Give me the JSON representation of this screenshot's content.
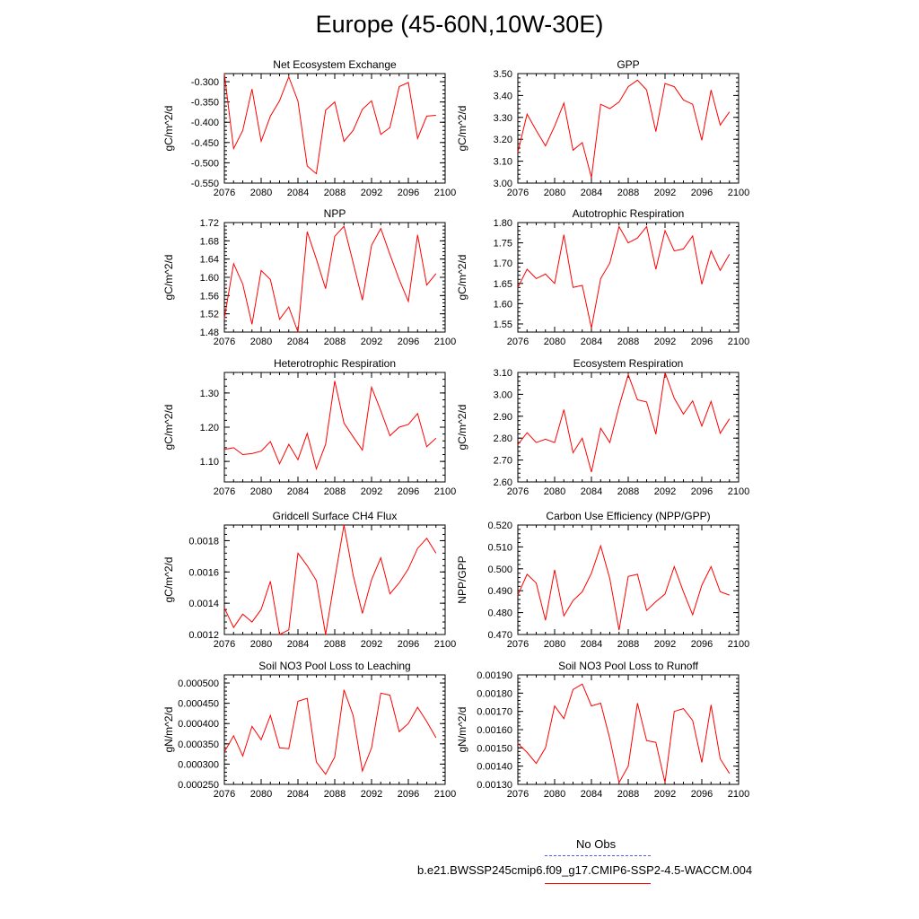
{
  "title": "Europe (45-60N,10W-30E)",
  "legend": {
    "entries": [
      {
        "label": "No Obs",
        "color": "#5555ff",
        "dash": true
      },
      {
        "label": "b.e21.BWSSP245cmip6.f09_g17.CMIP6-SSP2-4.5-WACCM.004",
        "color": "#ff0000",
        "dash": false
      }
    ]
  },
  "chart_data": [
    {
      "type": "line",
      "title": "Net Ecosystem Exchange",
      "ylabel": "gC/m^2/d",
      "xlim": [
        2076,
        2100
      ],
      "ylim": [
        -0.55,
        -0.28
      ],
      "xticks": [
        2076,
        2080,
        2084,
        2088,
        2092,
        2096,
        2100
      ],
      "yticks": [
        -0.55,
        -0.5,
        -0.45,
        -0.4,
        -0.35,
        -0.3
      ],
      "ytick_labels": [
        "-0.550",
        "-0.500",
        "-0.450",
        "-0.400",
        "-0.350",
        "-0.300"
      ],
      "color": "#ff0000",
      "x": [
        2076,
        2077,
        2078,
        2079,
        2080,
        2081,
        2082,
        2083,
        2084,
        2085,
        2086,
        2087,
        2088,
        2089,
        2090,
        2091,
        2092,
        2093,
        2094,
        2095,
        2096,
        2097,
        2098,
        2099
      ],
      "y": [
        -0.28,
        -0.465,
        -0.42,
        -0.318,
        -0.447,
        -0.385,
        -0.347,
        -0.288,
        -0.348,
        -0.508,
        -0.527,
        -0.37,
        -0.35,
        -0.447,
        -0.42,
        -0.368,
        -0.347,
        -0.43,
        -0.413,
        -0.312,
        -0.302,
        -0.44,
        -0.385,
        -0.383
      ]
    },
    {
      "type": "line",
      "title": "GPP",
      "ylabel": "gC/m^2/d",
      "xlim": [
        2076,
        2100
      ],
      "ylim": [
        3.0,
        3.5
      ],
      "xticks": [
        2076,
        2080,
        2084,
        2088,
        2092,
        2096,
        2100
      ],
      "yticks": [
        3.0,
        3.1,
        3.2,
        3.3,
        3.4,
        3.5
      ],
      "ytick_labels": [
        "3.00",
        "3.10",
        "3.20",
        "3.30",
        "3.40",
        "3.50"
      ],
      "color": "#ff0000",
      "x": [
        2076,
        2077,
        2078,
        2079,
        2080,
        2081,
        2082,
        2083,
        2084,
        2085,
        2086,
        2087,
        2088,
        2089,
        2090,
        2091,
        2092,
        2093,
        2094,
        2095,
        2096,
        2097,
        2098,
        2099
      ],
      "y": [
        3.14,
        3.315,
        3.24,
        3.17,
        3.26,
        3.365,
        3.15,
        3.185,
        3.025,
        3.36,
        3.34,
        3.37,
        3.44,
        3.47,
        3.425,
        3.235,
        3.455,
        3.44,
        3.38,
        3.36,
        3.195,
        3.425,
        3.265,
        3.325
      ]
    },
    {
      "type": "line",
      "title": "NPP",
      "ylabel": "gC/m^2/d",
      "xlim": [
        2076,
        2100
      ],
      "ylim": [
        1.48,
        1.72
      ],
      "xticks": [
        2076,
        2080,
        2084,
        2088,
        2092,
        2096,
        2100
      ],
      "yticks": [
        1.48,
        1.52,
        1.56,
        1.6,
        1.64,
        1.68,
        1.72
      ],
      "ytick_labels": [
        "1.48",
        "1.52",
        "1.56",
        "1.60",
        "1.64",
        "1.68",
        "1.72"
      ],
      "color": "#ff0000",
      "x": [
        2076,
        2077,
        2078,
        2079,
        2080,
        2081,
        2082,
        2083,
        2084,
        2085,
        2086,
        2087,
        2088,
        2089,
        2090,
        2091,
        2092,
        2093,
        2094,
        2095,
        2096,
        2097,
        2098,
        2099
      ],
      "y": [
        1.51,
        1.63,
        1.585,
        1.497,
        1.615,
        1.595,
        1.508,
        1.535,
        1.48,
        1.7,
        1.64,
        1.575,
        1.69,
        1.712,
        1.632,
        1.55,
        1.67,
        1.707,
        1.65,
        1.595,
        1.547,
        1.693,
        1.583,
        1.608
      ]
    },
    {
      "type": "line",
      "title": "Autotrophic Respiration",
      "ylabel": "gC/m^2/d",
      "xlim": [
        2076,
        2100
      ],
      "ylim": [
        1.53,
        1.8
      ],
      "xticks": [
        2076,
        2080,
        2084,
        2088,
        2092,
        2096,
        2100
      ],
      "yticks": [
        1.55,
        1.6,
        1.65,
        1.7,
        1.75,
        1.8
      ],
      "ytick_labels": [
        "1.55",
        "1.60",
        "1.65",
        "1.70",
        "1.75",
        "1.80"
      ],
      "color": "#ff0000",
      "x": [
        2076,
        2077,
        2078,
        2079,
        2080,
        2081,
        2082,
        2083,
        2084,
        2085,
        2086,
        2087,
        2088,
        2089,
        2090,
        2091,
        2092,
        2093,
        2094,
        2095,
        2096,
        2097,
        2098,
        2099
      ],
      "y": [
        1.64,
        1.685,
        1.662,
        1.673,
        1.65,
        1.77,
        1.64,
        1.645,
        1.54,
        1.662,
        1.7,
        1.79,
        1.75,
        1.762,
        1.79,
        1.685,
        1.78,
        1.73,
        1.735,
        1.767,
        1.648,
        1.73,
        1.682,
        1.722
      ]
    },
    {
      "type": "line",
      "title": "Heterotrophic Respiration",
      "ylabel": "gC/m^2/d",
      "xlim": [
        2076,
        2100
      ],
      "ylim": [
        1.04,
        1.36
      ],
      "xticks": [
        2076,
        2080,
        2084,
        2088,
        2092,
        2096,
        2100
      ],
      "yticks": [
        1.1,
        1.2,
        1.3
      ],
      "ytick_labels": [
        "1.10",
        "1.20",
        "1.30"
      ],
      "color": "#ff0000",
      "x": [
        2076,
        2077,
        2078,
        2079,
        2080,
        2081,
        2082,
        2083,
        2084,
        2085,
        2086,
        2087,
        2088,
        2089,
        2090,
        2091,
        2092,
        2093,
        2094,
        2095,
        2096,
        2097,
        2098,
        2099
      ],
      "y": [
        1.135,
        1.14,
        1.12,
        1.123,
        1.13,
        1.158,
        1.093,
        1.15,
        1.105,
        1.182,
        1.078,
        1.15,
        1.335,
        1.212,
        1.172,
        1.133,
        1.317,
        1.248,
        1.175,
        1.2,
        1.208,
        1.24,
        1.143,
        1.168
      ]
    },
    {
      "type": "line",
      "title": "Ecosystem Respiration",
      "ylabel": "gC/m^2/d",
      "xlim": [
        2076,
        2100
      ],
      "ylim": [
        2.6,
        3.1
      ],
      "xticks": [
        2076,
        2080,
        2084,
        2088,
        2092,
        2096,
        2100
      ],
      "yticks": [
        2.6,
        2.7,
        2.8,
        2.9,
        3.0,
        3.1
      ],
      "ytick_labels": [
        "2.60",
        "2.70",
        "2.80",
        "2.90",
        "3.00",
        "3.10"
      ],
      "color": "#ff0000",
      "x": [
        2076,
        2077,
        2078,
        2079,
        2080,
        2081,
        2082,
        2083,
        2084,
        2085,
        2086,
        2087,
        2088,
        2089,
        2090,
        2091,
        2092,
        2093,
        2094,
        2095,
        2096,
        2097,
        2098,
        2099
      ],
      "y": [
        2.77,
        2.825,
        2.78,
        2.795,
        2.78,
        2.93,
        2.733,
        2.8,
        2.645,
        2.845,
        2.78,
        2.945,
        3.09,
        2.975,
        2.965,
        2.818,
        3.1,
        2.982,
        2.91,
        2.97,
        2.855,
        2.968,
        2.822,
        2.888
      ]
    },
    {
      "type": "line",
      "title": "Gridcell Surface CH4 Flux",
      "ylabel": "gC/m^2/d",
      "xlim": [
        2076,
        2100
      ],
      "ylim": [
        0.0012,
        0.0019
      ],
      "xticks": [
        2076,
        2080,
        2084,
        2088,
        2092,
        2096,
        2100
      ],
      "yticks": [
        0.0012,
        0.0014,
        0.0016,
        0.0018
      ],
      "ytick_labels": [
        "0.0012",
        "0.0014",
        "0.0016",
        "0.0018"
      ],
      "color": "#ff0000",
      "x": [
        2076,
        2077,
        2078,
        2079,
        2080,
        2081,
        2082,
        2083,
        2084,
        2085,
        2086,
        2087,
        2088,
        2089,
        2090,
        2091,
        2092,
        2093,
        2094,
        2095,
        2096,
        2097,
        2098,
        2099
      ],
      "y": [
        0.00137,
        0.001245,
        0.00133,
        0.00128,
        0.00136,
        0.00154,
        0.0012,
        0.00123,
        0.00172,
        0.00164,
        0.001545,
        0.0012,
        0.001555,
        0.0019,
        0.00158,
        0.001335,
        0.00155,
        0.00169,
        0.00146,
        0.00153,
        0.00162,
        0.00175,
        0.001815,
        0.00172
      ]
    },
    {
      "type": "line",
      "title": "Carbon Use Efficiency (NPP/GPP)",
      "ylabel": "NPP/GPP",
      "xlim": [
        2076,
        2100
      ],
      "ylim": [
        0.47,
        0.52
      ],
      "xticks": [
        2076,
        2080,
        2084,
        2088,
        2092,
        2096,
        2100
      ],
      "yticks": [
        0.47,
        0.48,
        0.49,
        0.5,
        0.51,
        0.52
      ],
      "ytick_labels": [
        "0.470",
        "0.480",
        "0.490",
        "0.500",
        "0.510",
        "0.520"
      ],
      "color": "#ff0000",
      "x": [
        2076,
        2077,
        2078,
        2079,
        2080,
        2081,
        2082,
        2083,
        2084,
        2085,
        2086,
        2087,
        2088,
        2089,
        2090,
        2091,
        2092,
        2093,
        2094,
        2095,
        2096,
        2097,
        2098,
        2099
      ],
      "y": [
        0.488,
        0.4975,
        0.4935,
        0.4765,
        0.4995,
        0.4785,
        0.4855,
        0.4895,
        0.498,
        0.5105,
        0.4955,
        0.472,
        0.4965,
        0.4975,
        0.481,
        0.485,
        0.4885,
        0.501,
        0.4895,
        0.479,
        0.4925,
        0.501,
        0.4895,
        0.488
      ]
    },
    {
      "type": "line",
      "title": "Soil NO3 Pool Loss to Leaching",
      "ylabel": "gN/m^2/d",
      "xlim": [
        2076,
        2100
      ],
      "ylim": [
        0.00025,
        0.00052
      ],
      "xticks": [
        2076,
        2080,
        2084,
        2088,
        2092,
        2096,
        2100
      ],
      "yticks": [
        0.00025,
        0.0003,
        0.00035,
        0.0004,
        0.00045,
        0.0005
      ],
      "ytick_labels": [
        "0.000250",
        "0.000300",
        "0.000350",
        "0.000400",
        "0.000450",
        "0.000500"
      ],
      "color": "#ff0000",
      "x": [
        2076,
        2077,
        2078,
        2079,
        2080,
        2081,
        2082,
        2083,
        2084,
        2085,
        2086,
        2087,
        2088,
        2089,
        2090,
        2091,
        2092,
        2093,
        2094,
        2095,
        2096,
        2097,
        2098,
        2099
      ],
      "y": [
        0.00033,
        0.00037,
        0.00032,
        0.000393,
        0.00036,
        0.00042,
        0.00034,
        0.000338,
        0.000455,
        0.000462,
        0.000305,
        0.000275,
        0.000318,
        0.000483,
        0.00042,
        0.000283,
        0.00034,
        0.000475,
        0.00047,
        0.00038,
        0.0004,
        0.00044,
        0.000405,
        0.000365
      ]
    },
    {
      "type": "line",
      "title": "Soil NO3 Pool Loss to Runoff",
      "ylabel": "gN/m^2/d",
      "xlim": [
        2076,
        2100
      ],
      "ylim": [
        0.0013,
        0.0019
      ],
      "xticks": [
        2076,
        2080,
        2084,
        2088,
        2092,
        2096,
        2100
      ],
      "yticks": [
        0.0013,
        0.0014,
        0.0015,
        0.0016,
        0.0017,
        0.0018,
        0.0019
      ],
      "ytick_labels": [
        "0.00130",
        "0.00140",
        "0.00150",
        "0.00160",
        "0.00170",
        "0.00180",
        "0.00190"
      ],
      "color": "#ff0000",
      "x": [
        2076,
        2077,
        2078,
        2079,
        2080,
        2081,
        2082,
        2083,
        2084,
        2085,
        2086,
        2087,
        2088,
        2089,
        2090,
        2091,
        2092,
        2093,
        2094,
        2095,
        2096,
        2097,
        2098,
        2099
      ],
      "y": [
        0.001525,
        0.001475,
        0.001415,
        0.0015,
        0.00173,
        0.00166,
        0.00182,
        0.00185,
        0.00173,
        0.001745,
        0.00155,
        0.00131,
        0.0014,
        0.001745,
        0.00154,
        0.00153,
        0.00131,
        0.0017,
        0.001715,
        0.00165,
        0.00142,
        0.001735,
        0.00144,
        0.00136
      ]
    }
  ]
}
